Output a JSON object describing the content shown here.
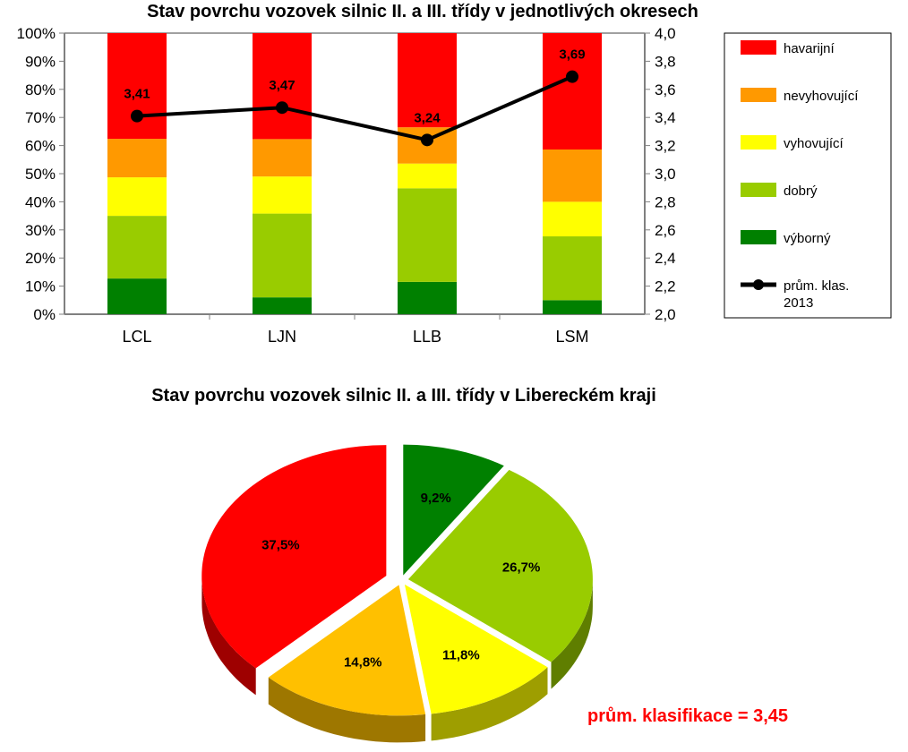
{
  "chart_data": [
    {
      "type": "bar",
      "stacked": true,
      "title": "Stav povrchu vozovek silnic II. a III. třídy v jednotlivých okresech",
      "categories": [
        "LCL",
        "LJN",
        "LLB",
        "LSM"
      ],
      "y_axis_left": {
        "min": 0,
        "max": 100,
        "step": 10,
        "unit": "%",
        "ticks": [
          "0%",
          "10%",
          "20%",
          "30%",
          "40%",
          "50%",
          "60%",
          "70%",
          "80%",
          "90%",
          "100%"
        ]
      },
      "y_axis_right": {
        "min": 2.0,
        "max": 4.0,
        "step": 0.2,
        "ticks": [
          "2,0",
          "2,2",
          "2,4",
          "2,6",
          "2,8",
          "3,0",
          "3,2",
          "3,4",
          "3,6",
          "3,8",
          "4,0"
        ]
      },
      "series": [
        {
          "name": "výborný",
          "color": "#008000",
          "values": [
            12.7,
            6.0,
            11.5,
            5.0
          ]
        },
        {
          "name": "dobrý",
          "color": "#99cc00",
          "values": [
            22.3,
            29.8,
            33.3,
            22.7
          ]
        },
        {
          "name": "vyhovující",
          "color": "#ffff00",
          "values": [
            13.7,
            13.2,
            8.8,
            12.3
          ]
        },
        {
          "name": "nevyhovující",
          "color": "#ff9900",
          "values": [
            13.7,
            13.3,
            12.9,
            18.6
          ]
        },
        {
          "name": "havarijní",
          "color": "#ff0000",
          "values": [
            37.6,
            37.7,
            33.5,
            41.4
          ]
        }
      ],
      "line_series": {
        "name": "prům. klas. 2013",
        "name_lines": [
          "prům. klas.",
          "2013"
        ],
        "color": "#000000",
        "values": [
          3.41,
          3.47,
          3.24,
          3.69
        ],
        "labels": [
          "3,41",
          "3,47",
          "3,24",
          "3,69"
        ]
      },
      "legend_order": [
        "havarijní",
        "nevyhovující",
        "vyhovující",
        "dobrý",
        "výborný",
        "prům. klas. 2013"
      ],
      "legend_position": "right",
      "grid": false
    },
    {
      "type": "pie",
      "style": "3d-exploded",
      "title": "Stav povrchu vozovek silnic II. a III. třídy v Libereckém kraji",
      "slices": [
        {
          "name": "výborný",
          "value": 9.2,
          "label": "9,2%",
          "color": "#008000"
        },
        {
          "name": "dobrý",
          "value": 26.7,
          "label": "26,7%",
          "color": "#99cc00"
        },
        {
          "name": "vyhovující",
          "value": 11.8,
          "label": "11,8%",
          "color": "#ffff00"
        },
        {
          "name": "nevyhovující",
          "value": 14.8,
          "label": "14,8%",
          "color": "#ffc000"
        },
        {
          "name": "havarijní",
          "value": 37.5,
          "label": "37,5%",
          "color": "#ff0000"
        }
      ],
      "annotation": "prům. klasifikace = 3,45"
    }
  ]
}
